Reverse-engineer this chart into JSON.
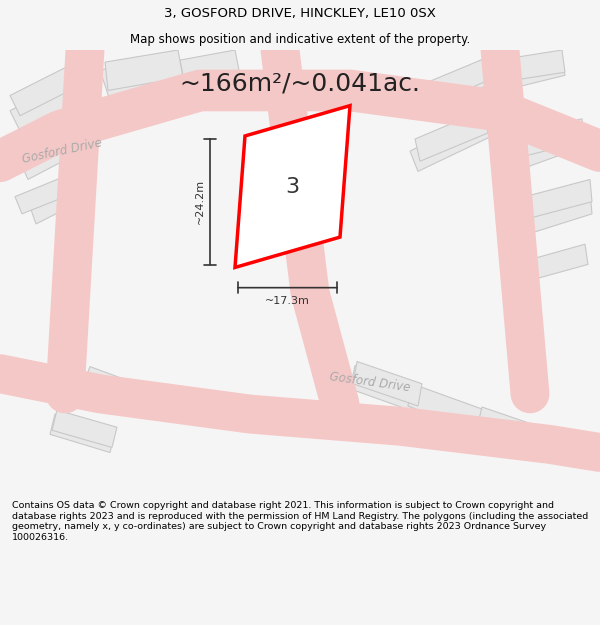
{
  "title_line1": "3, GOSFORD DRIVE, HINCKLEY, LE10 0SX",
  "title_line2": "Map shows position and indicative extent of the property.",
  "area_text": "~166m²/~0.041ac.",
  "dim_vertical": "~24.2m",
  "dim_horizontal": "~17.3m",
  "label_number": "3",
  "road_label1": "Gosford Drive",
  "road_label2": "Gosford Drive",
  "footer_text": "Contains OS data © Crown copyright and database right 2021. This information is subject to Crown copyright and database rights 2023 and is reproduced with the permission of HM Land Registry. The polygons (including the associated geometry, namely x, y co-ordinates) are subject to Crown copyright and database rights 2023 Ordnance Survey 100026316.",
  "bg_color": "#f5f5f5",
  "map_bg": "#f0efef",
  "building_fill": "#e8e8e8",
  "building_edge": "#c8c8c8",
  "road_color": "#f5c8c8",
  "highlight_color": "#ff0000",
  "highlight_fill": "#ffffff",
  "dim_color": "#333333",
  "footer_bg": "#ffffff"
}
